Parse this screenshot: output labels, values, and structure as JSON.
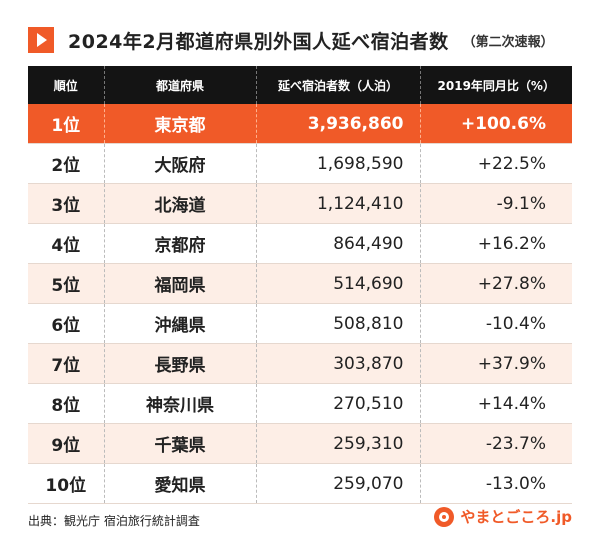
{
  "title": {
    "main": "2024年2月都道府県別外国人延べ宿泊者数",
    "sub": "（第二次速報）"
  },
  "chart_data": {
    "type": "table",
    "columns": [
      "順位",
      "都道府県",
      "延べ宿泊者数（人泊）",
      "2019年同月比（%）"
    ],
    "rows": [
      {
        "rank": "1位",
        "prefecture": "東京都",
        "stays": "3,936,860",
        "change": "+100.6%"
      },
      {
        "rank": "2位",
        "prefecture": "大阪府",
        "stays": "1,698,590",
        "change": "+22.5%"
      },
      {
        "rank": "3位",
        "prefecture": "北海道",
        "stays": "1,124,410",
        "change": "-9.1%"
      },
      {
        "rank": "4位",
        "prefecture": "京都府",
        "stays": "864,490",
        "change": "+16.2%"
      },
      {
        "rank": "5位",
        "prefecture": "福岡県",
        "stays": "514,690",
        "change": "+27.8%"
      },
      {
        "rank": "6位",
        "prefecture": "沖縄県",
        "stays": "508,810",
        "change": "-10.4%"
      },
      {
        "rank": "7位",
        "prefecture": "長野県",
        "stays": "303,870",
        "change": "+37.9%"
      },
      {
        "rank": "8位",
        "prefecture": "神奈川県",
        "stays": "270,510",
        "change": "+14.4%"
      },
      {
        "rank": "9位",
        "prefecture": "千葉県",
        "stays": "259,310",
        "change": "-23.7%"
      },
      {
        "rank": "10位",
        "prefecture": "愛知県",
        "stays": "259,070",
        "change": "-13.0%"
      }
    ]
  },
  "footer": {
    "source": "出典：観光庁 宿泊旅行統計調査",
    "logo_icon": "yamatogokoro-logo-icon",
    "logo_text": "やまとごころ.jp"
  },
  "colors": {
    "accent": "#f05a28",
    "header_bg": "#141414",
    "row_alt": "#fdeee6"
  }
}
